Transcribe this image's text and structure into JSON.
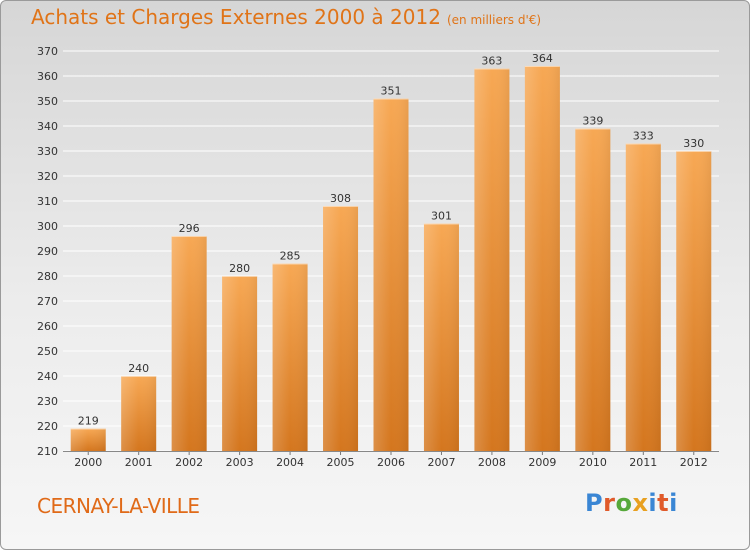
{
  "header": {
    "title": "Achats et Charges Externes 2000 à 2012",
    "unit": "(en milliers d'€)"
  },
  "place_name": "CERNAY-LA-VILLE",
  "logo_text": "Proxiti",
  "chart_data": {
    "type": "bar",
    "categories": [
      "2000",
      "2001",
      "2002",
      "2003",
      "2004",
      "2005",
      "2006",
      "2007",
      "2008",
      "2009",
      "2010",
      "2011",
      "2012"
    ],
    "values": [
      219,
      240,
      296,
      280,
      285,
      308,
      351,
      301,
      363,
      364,
      339,
      333,
      330
    ],
    "ylim": [
      210,
      370
    ],
    "ytick_step": 10,
    "grid": true,
    "data_labels": true,
    "colors": {
      "bar": "#f3a04c",
      "bar_dark": "#d4761e",
      "grid": "#ffffff"
    }
  }
}
